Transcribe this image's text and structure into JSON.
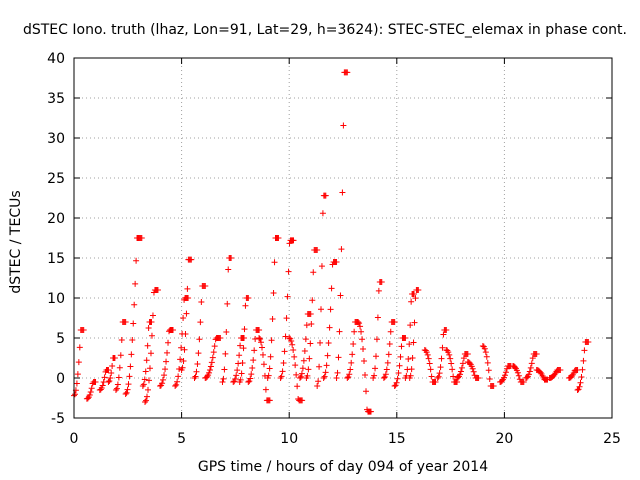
{
  "chart_data": {
    "type": "scatter",
    "title": "dSTEC Iono. truth (lhaz, Lon=91, Lat=29, h=3624): STEC-STEC_elemax in phase cont.",
    "xlabel": "GPS time / hours of day 094 of year 2014",
    "ylabel": "dSTEC  / TECUs",
    "xlim": [
      0,
      25
    ],
    "ylim": [
      -5,
      40
    ],
    "xticks": [
      0,
      5,
      10,
      15,
      20,
      25
    ],
    "yticks": [
      -5,
      0,
      5,
      10,
      15,
      20,
      25,
      30,
      35,
      40
    ],
    "grid": true,
    "marker": "+",
    "color": "#ff0000",
    "arcs": [
      {
        "t0": 0.0,
        "t1": 0.45,
        "start": -2.2,
        "peak": 6.0,
        "end": 6.0
      },
      {
        "t0": 0.6,
        "t1": 1.0,
        "start": -2.6,
        "peak": -0.5,
        "end": -0.5
      },
      {
        "t0": 1.2,
        "t1": 1.6,
        "start": -1.5,
        "peak": 1.0,
        "end": 1.0
      },
      {
        "t0": 1.6,
        "t1": 1.9,
        "start": -0.5,
        "peak": 2.5,
        "end": 2.5
      },
      {
        "t0": 1.95,
        "t1": 2.4,
        "start": -1.5,
        "peak": 7.0,
        "end": 7.0
      },
      {
        "t0": 2.4,
        "t1": 3.15,
        "start": -2.0,
        "peak": 17.5,
        "end": 17.5
      },
      {
        "t0": 3.2,
        "t1": 3.6,
        "start": -1.0,
        "peak": 7.0,
        "end": 7.0
      },
      {
        "t0": 3.3,
        "t1": 3.9,
        "start": -3.0,
        "peak": 11.0,
        "end": 11.0
      },
      {
        "t0": 4.0,
        "t1": 4.6,
        "start": -1.0,
        "peak": 6.0,
        "end": 6.0
      },
      {
        "t0": 4.7,
        "t1": 5.3,
        "start": -1.0,
        "peak": 10.0,
        "end": 10.0
      },
      {
        "t0": 5.0,
        "t1": 5.45,
        "start": 1.0,
        "peak": 14.8,
        "end": 14.8
      },
      {
        "t0": 5.6,
        "t1": 6.1,
        "start": 0.0,
        "peak": 11.5,
        "end": 11.5
      },
      {
        "t0": 6.1,
        "t1": 6.8,
        "start": 0.0,
        "peak": 5.0,
        "end": 5.0
      },
      {
        "t0": 6.9,
        "t1": 7.3,
        "start": -0.5,
        "peak": 15.0,
        "end": 15.0
      },
      {
        "t0": 7.4,
        "t1": 7.9,
        "start": -0.5,
        "peak": 5.0,
        "end": 5.0
      },
      {
        "t0": 7.7,
        "t1": 8.1,
        "start": -0.5,
        "peak": 10.0,
        "end": 10.0
      },
      {
        "t0": 8.1,
        "t1": 8.6,
        "start": -0.5,
        "peak": 6.0,
        "end": 6.0
      },
      {
        "t0": 8.6,
        "t1": 9.1,
        "start": 5.0,
        "peak": -2.8,
        "end": -2.8
      },
      {
        "t0": 9.0,
        "t1": 9.5,
        "start": 0.0,
        "peak": 17.5,
        "end": 17.5
      },
      {
        "t0": 9.6,
        "t1": 10.2,
        "start": 0.0,
        "peak": 17.2,
        "end": 17.2
      },
      {
        "t0": 10.0,
        "t1": 10.6,
        "start": 5.0,
        "peak": -2.8,
        "end": -2.8
      },
      {
        "t0": 10.5,
        "t1": 11.0,
        "start": 0.0,
        "peak": 8.0,
        "end": 8.0
      },
      {
        "t0": 10.8,
        "t1": 11.3,
        "start": 0.0,
        "peak": 16.0,
        "end": 16.0
      },
      {
        "t0": 11.3,
        "t1": 11.7,
        "start": -1.0,
        "peak": 22.8,
        "end": 22.8
      },
      {
        "t0": 11.6,
        "t1": 12.2,
        "start": 0.0,
        "peak": 14.5,
        "end": 14.5
      },
      {
        "t0": 12.2,
        "t1": 12.7,
        "start": 0.0,
        "peak": 38.2,
        "end": 38.2
      },
      {
        "t0": 12.7,
        "t1": 13.2,
        "start": 0.0,
        "peak": 7.0,
        "end": 7.0
      },
      {
        "t0": 13.2,
        "t1": 13.8,
        "start": 7.0,
        "peak": -4.2,
        "end": -4.2
      },
      {
        "t0": 13.9,
        "t1": 14.3,
        "start": 0.0,
        "peak": 12.0,
        "end": 12.0
      },
      {
        "t0": 14.4,
        "t1": 14.9,
        "start": 0.0,
        "peak": 7.0,
        "end": 7.0
      },
      {
        "t0": 14.9,
        "t1": 15.4,
        "start": -1.0,
        "peak": 5.0,
        "end": 5.0
      },
      {
        "t0": 15.4,
        "t1": 15.8,
        "start": 0.0,
        "peak": 10.5,
        "end": 10.5
      },
      {
        "t0": 15.6,
        "t1": 16.0,
        "start": 0.0,
        "peak": 11.0,
        "end": 11.0
      },
      {
        "t0": 16.3,
        "t1": 16.8,
        "start": 3.5,
        "peak": -0.5,
        "end": -0.5
      },
      {
        "t0": 16.9,
        "t1": 17.3,
        "start": 0.0,
        "peak": 6.0,
        "end": 6.0
      },
      {
        "t0": 17.3,
        "t1": 17.8,
        "start": 3.5,
        "peak": -0.5,
        "end": -0.5
      },
      {
        "t0": 17.8,
        "t1": 18.3,
        "start": 0.0,
        "peak": 3.0,
        "end": 3.0
      },
      {
        "t0": 18.3,
        "t1": 18.8,
        "start": 2.0,
        "peak": 0.0,
        "end": 0.0
      },
      {
        "t0": 19.0,
        "t1": 19.5,
        "start": 4.0,
        "peak": -1.0,
        "end": -1.0
      },
      {
        "t0": 19.8,
        "t1": 20.3,
        "start": -0.5,
        "peak": 1.5,
        "end": 1.5
      },
      {
        "t0": 20.4,
        "t1": 20.9,
        "start": 1.5,
        "peak": -0.5,
        "end": -0.5
      },
      {
        "t0": 21.0,
        "t1": 21.5,
        "start": 0.0,
        "peak": 3.0,
        "end": 3.0
      },
      {
        "t0": 21.5,
        "t1": 22.0,
        "start": 1.0,
        "peak": -0.2,
        "end": -0.2
      },
      {
        "t0": 22.1,
        "t1": 22.6,
        "start": 0.0,
        "peak": 1.0,
        "end": 1.0
      },
      {
        "t0": 23.0,
        "t1": 23.4,
        "start": 0.0,
        "peak": 1.0,
        "end": 1.0
      },
      {
        "t0": 23.4,
        "t1": 23.9,
        "start": -1.5,
        "peak": 4.5,
        "end": 4.5
      }
    ]
  }
}
